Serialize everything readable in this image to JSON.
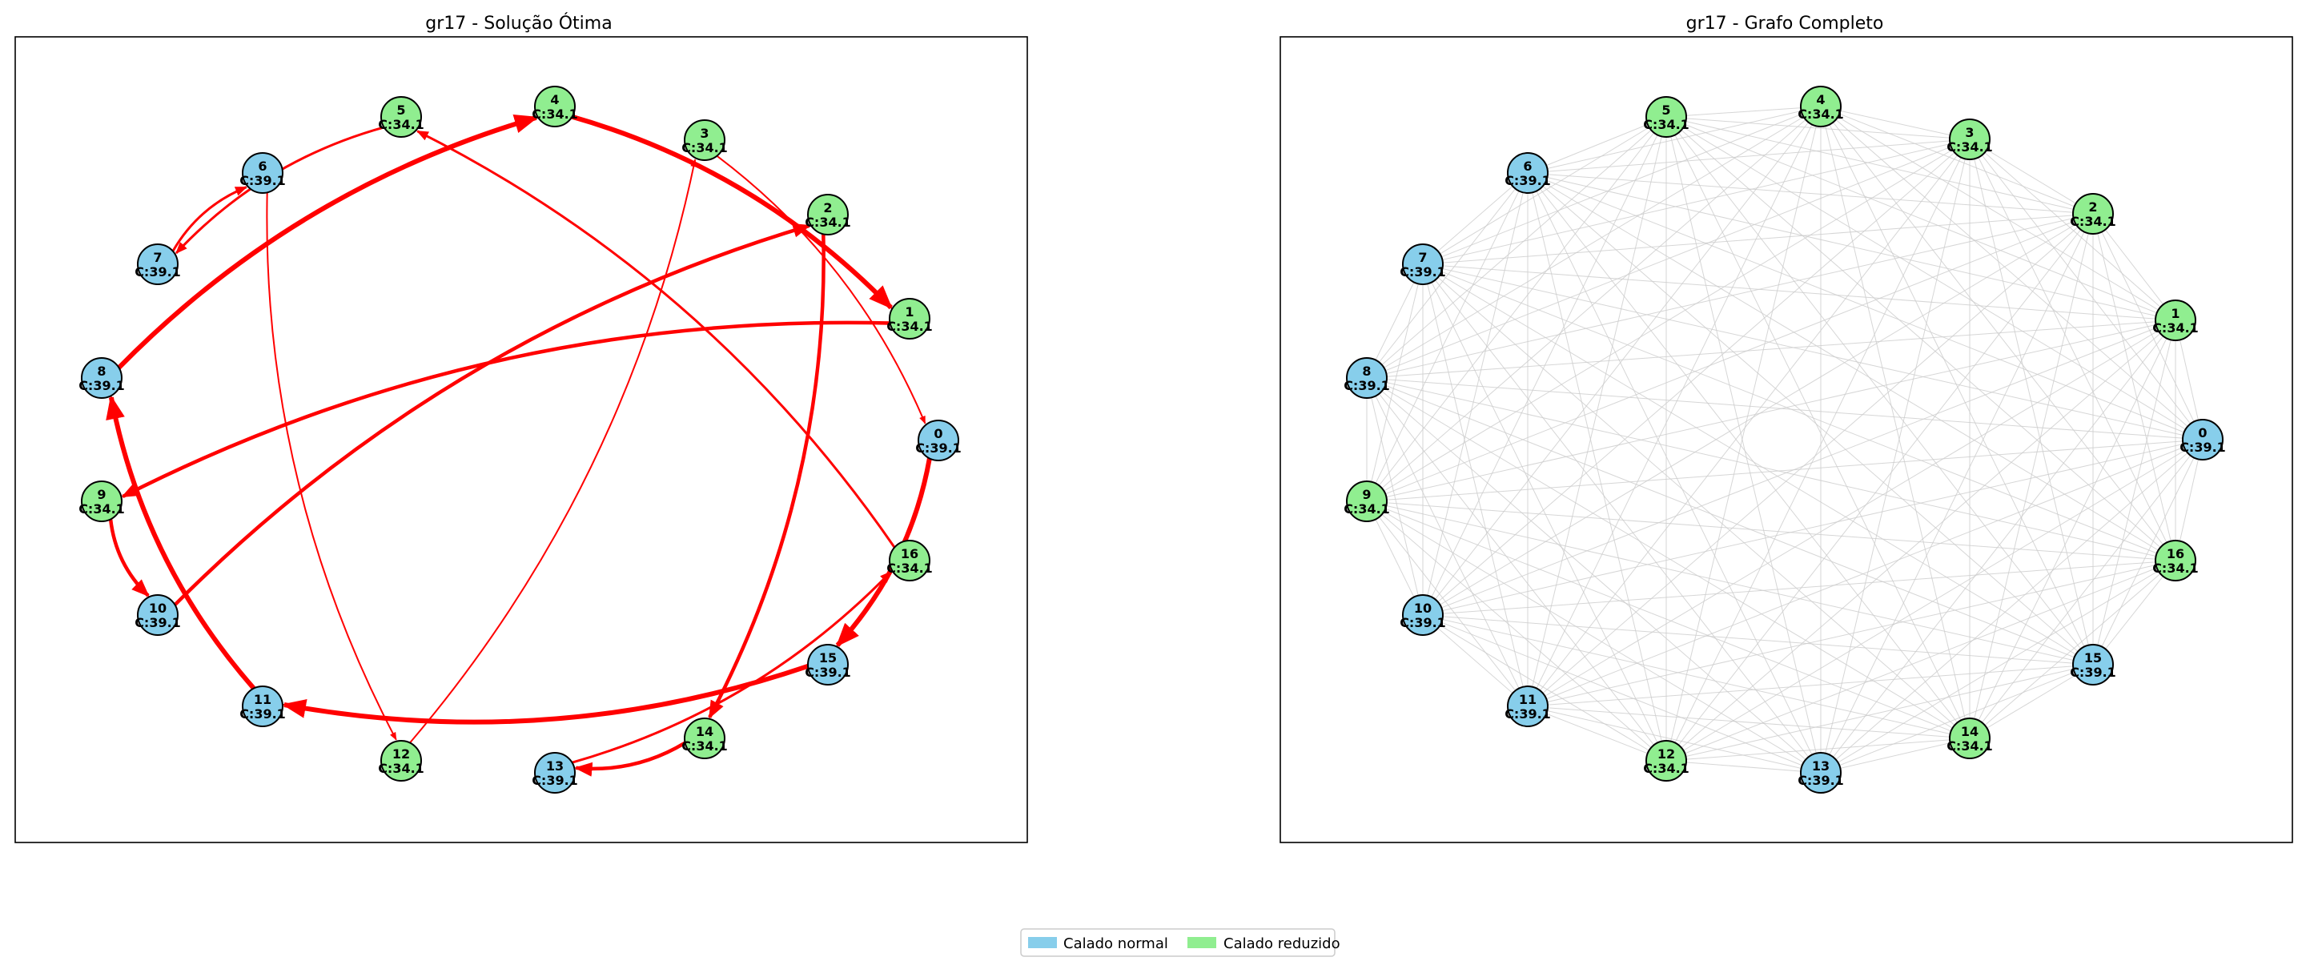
{
  "panels": {
    "left": {
      "title": "gr17 - Solução Ótima"
    },
    "right": {
      "title": "gr17 - Grafo Completo"
    }
  },
  "nodes": [
    {
      "id": "0",
      "capacity": "C:39.1",
      "type": "normal"
    },
    {
      "id": "1",
      "capacity": "C:34.1",
      "type": "reduced"
    },
    {
      "id": "2",
      "capacity": "C:34.1",
      "type": "reduced"
    },
    {
      "id": "3",
      "capacity": "C:34.1",
      "type": "reduced"
    },
    {
      "id": "4",
      "capacity": "C:34.1",
      "type": "reduced"
    },
    {
      "id": "5",
      "capacity": "C:34.1",
      "type": "reduced"
    },
    {
      "id": "6",
      "capacity": "C:39.1",
      "type": "normal"
    },
    {
      "id": "7",
      "capacity": "C:39.1",
      "type": "normal"
    },
    {
      "id": "8",
      "capacity": "C:39.1",
      "type": "normal"
    },
    {
      "id": "9",
      "capacity": "C:34.1",
      "type": "reduced"
    },
    {
      "id": "10",
      "capacity": "C:39.1",
      "type": "normal"
    },
    {
      "id": "11",
      "capacity": "C:39.1",
      "type": "normal"
    },
    {
      "id": "12",
      "capacity": "C:34.1",
      "type": "reduced"
    },
    {
      "id": "13",
      "capacity": "C:39.1",
      "type": "normal"
    },
    {
      "id": "14",
      "capacity": "C:34.1",
      "type": "reduced"
    },
    {
      "id": "15",
      "capacity": "C:39.1",
      "type": "normal"
    },
    {
      "id": "16",
      "capacity": "C:34.1",
      "type": "reduced"
    }
  ],
  "solution_edges": [
    {
      "from": "0",
      "to": "15",
      "weight": "heavy"
    },
    {
      "from": "15",
      "to": "11",
      "weight": "heavy"
    },
    {
      "from": "11",
      "to": "8",
      "weight": "heavy"
    },
    {
      "from": "8",
      "to": "4",
      "weight": "heavy"
    },
    {
      "from": "4",
      "to": "1",
      "weight": "heavy"
    },
    {
      "from": "1",
      "to": "9",
      "weight": "medium"
    },
    {
      "from": "9",
      "to": "10",
      "weight": "medium"
    },
    {
      "from": "10",
      "to": "2",
      "weight": "medium"
    },
    {
      "from": "2",
      "to": "14",
      "weight": "medium"
    },
    {
      "from": "14",
      "to": "13",
      "weight": "medium"
    },
    {
      "from": "13",
      "to": "16",
      "weight": "light"
    },
    {
      "from": "16",
      "to": "5",
      "weight": "light"
    },
    {
      "from": "5",
      "to": "7",
      "weight": "light"
    },
    {
      "from": "7",
      "to": "6",
      "weight": "light"
    },
    {
      "from": "6",
      "to": "12",
      "weight": "thin"
    },
    {
      "from": "12",
      "to": "3",
      "weight": "thin"
    },
    {
      "from": "3",
      "to": "0",
      "weight": "thin"
    }
  ],
  "legend": {
    "items": [
      {
        "label": "Calado normal",
        "color": "#87ceeb"
      },
      {
        "label": "Calado reduzido",
        "color": "#90ee90"
      }
    ]
  },
  "colors": {
    "normal": "#87ceeb",
    "reduced": "#90ee90",
    "solution_edge": "#ff0000",
    "complete_edge": "#cccccc"
  }
}
